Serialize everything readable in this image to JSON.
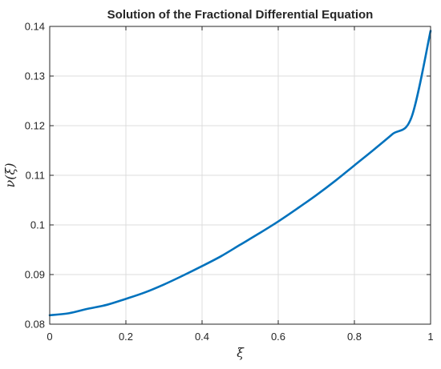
{
  "chart_data": {
    "type": "line",
    "title": "Solution of the Fractional Differential Equation",
    "xlabel": "ξ",
    "ylabel": "ν(ξ)",
    "xlim": [
      0,
      1
    ],
    "ylim": [
      0.08,
      0.14
    ],
    "xticks": [
      0,
      0.2,
      0.4,
      0.6,
      0.8,
      1
    ],
    "xtick_labels": [
      "0",
      "0.2",
      "0.4",
      "0.6",
      "0.8",
      "1"
    ],
    "yticks": [
      0.08,
      0.09,
      0.1,
      0.11,
      0.12,
      0.13,
      0.14
    ],
    "ytick_labels": [
      "0.08",
      "0.09",
      "0.1",
      "0.11",
      "0.12",
      "0.13",
      "0.14"
    ],
    "grid": true,
    "series": [
      {
        "color": "#0072BD",
        "x": [
          0,
          0.05,
          0.1,
          0.15,
          0.2,
          0.25,
          0.3,
          0.35,
          0.4,
          0.45,
          0.5,
          0.55,
          0.6,
          0.65,
          0.7,
          0.75,
          0.8,
          0.85,
          0.9,
          0.95,
          1
        ],
        "y": [
          0.0818,
          0.0822,
          0.0831,
          0.0839,
          0.0851,
          0.0864,
          0.088,
          0.0898,
          0.0917,
          0.0937,
          0.096,
          0.0983,
          0.1007,
          0.1033,
          0.106,
          0.1089,
          0.112,
          0.1151,
          0.1183,
          0.1217,
          0.1391
        ]
      }
    ]
  }
}
